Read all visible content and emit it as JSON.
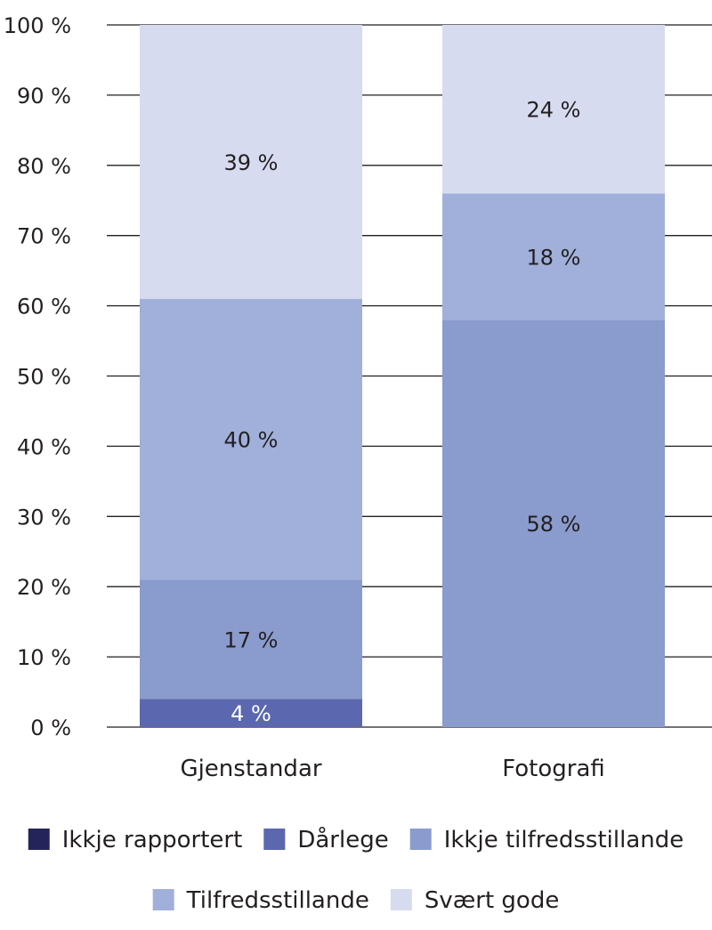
{
  "chart_data": {
    "type": "bar",
    "stacked": true,
    "categories": [
      "Gjenstandar",
      "Fotografi"
    ],
    "series": [
      {
        "name": "Ikkje rapportert",
        "values": [
          0,
          0
        ],
        "labels": [
          "",
          ""
        ],
        "color": "#24245a"
      },
      {
        "name": "Dårlege",
        "values": [
          4,
          0
        ],
        "labels": [
          "4 %",
          ""
        ],
        "color": "#5b67ae"
      },
      {
        "name": "Ikkje tilfredsstillande",
        "values": [
          17,
          58
        ],
        "labels": [
          "17 %",
          "58 %"
        ],
        "color": "#8a9bcd"
      },
      {
        "name": "Tilfredsstillande",
        "values": [
          40,
          18
        ],
        "labels": [
          "40 %",
          "18 %"
        ],
        "color": "#a0b0da"
      },
      {
        "name": "Svært gode",
        "values": [
          39,
          24
        ],
        "labels": [
          "39 %",
          "24 %"
        ],
        "color": "#d6dbf0"
      }
    ],
    "ylim": [
      0,
      100
    ],
    "y_ticks": [
      {
        "value": 0,
        "label": "0 %"
      },
      {
        "value": 10,
        "label": "10 %"
      },
      {
        "value": 20,
        "label": "20 %"
      },
      {
        "value": 30,
        "label": "30 %"
      },
      {
        "value": 40,
        "label": "40 %"
      },
      {
        "value": 50,
        "label": "50 %"
      },
      {
        "value": 60,
        "label": "60 %"
      },
      {
        "value": 70,
        "label": "70 %"
      },
      {
        "value": 80,
        "label": "80 %"
      },
      {
        "value": 90,
        "label": "90 %"
      },
      {
        "value": 100,
        "label": "100 %"
      }
    ],
    "grid": true,
    "legend_position": "bottom",
    "value_label_colors": {
      "dark": "#ffffff",
      "light": "#231f20"
    }
  }
}
